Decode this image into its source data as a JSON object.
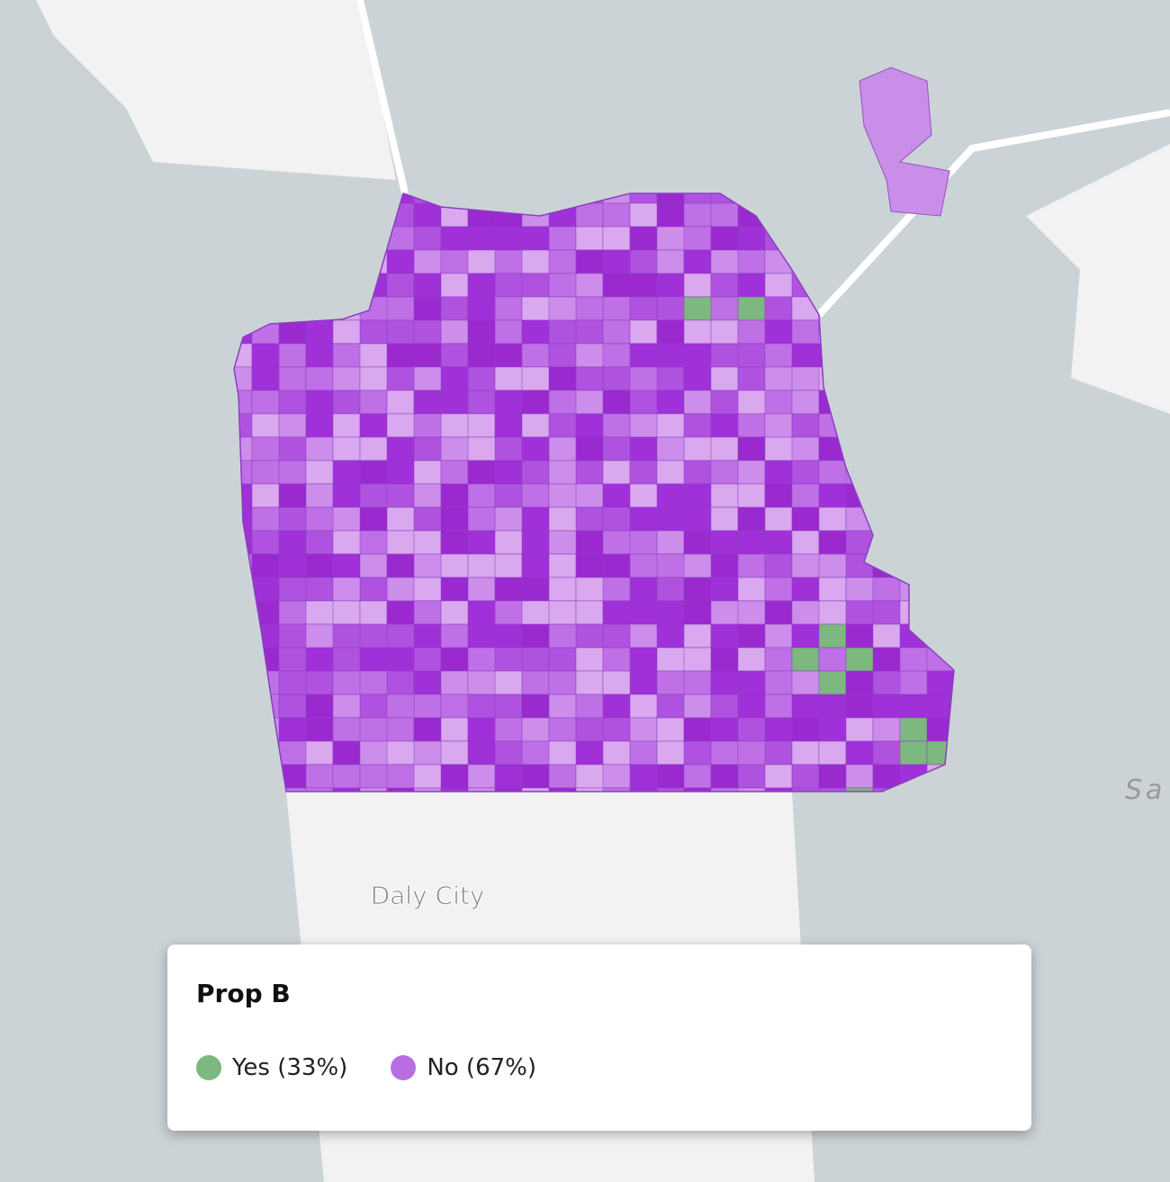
{
  "map": {
    "labels": [
      "Daly City",
      "Sa"
    ]
  },
  "legend": {
    "title": "Prop B",
    "items": [
      {
        "label": "Yes (33%)",
        "color": "#7cb87f"
      },
      {
        "label": "No (67%)",
        "color": "#b86ee0"
      }
    ]
  }
}
